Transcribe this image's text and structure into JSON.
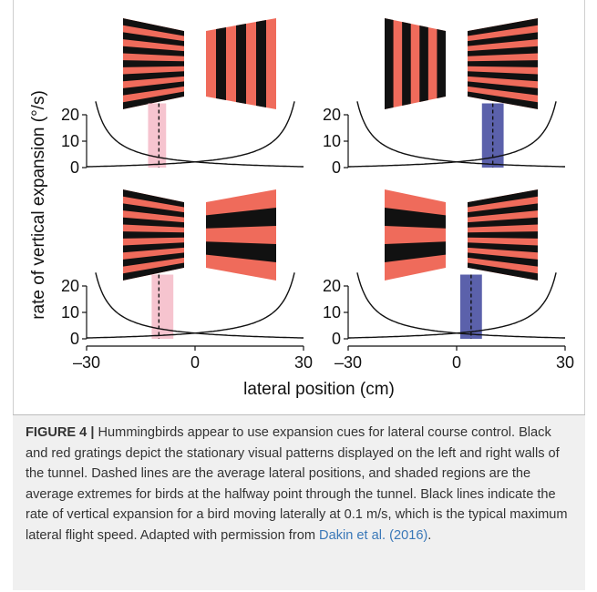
{
  "figure": {
    "ylabel": "rate of vertical expansion (°/s)",
    "xlabel": "lateral position (cm)",
    "colors": {
      "red": "#ef6b5b",
      "black": "#111111",
      "pink_band": "#f6c4cf",
      "blue_band": "#5b61ab",
      "curve": "#111111"
    }
  },
  "caption": {
    "label": "FIGURE 4 |",
    "text": " Hummingbirds appear to use expansion cues for lateral course control. Black and red gratings depict the stationary visual patterns displayed on the left and right walls of the tunnel. Dashed lines are the average lateral positions, and shaded regions are the average extremes for birds at the halfway point through the tunnel. Black lines indicate the rate of vertical expansion for a bird moving laterally at 0.1 m/s, which is the typical maximum lateral flight speed. Adapted with permission from ",
    "citation": "Dakin et al. (2016)",
    "end": "."
  },
  "chart_data": [
    {
      "type": "line",
      "panel": "top-left",
      "left_wall": "horizontal-fine",
      "right_wall": "vertical",
      "x_range": [
        -30,
        30
      ],
      "ylim": [
        0,
        25
      ],
      "yticks": [
        0,
        10,
        20
      ],
      "mean_position": -10,
      "band": [
        -13,
        -8
      ],
      "band_color": "pink"
    },
    {
      "type": "line",
      "panel": "top-right",
      "left_wall": "vertical",
      "right_wall": "horizontal-fine",
      "x_range": [
        -30,
        30
      ],
      "ylim": [
        0,
        25
      ],
      "yticks": [
        0,
        10,
        20
      ],
      "mean_position": 10,
      "band": [
        7,
        13
      ],
      "band_color": "blue"
    },
    {
      "type": "line",
      "panel": "bottom-left",
      "left_wall": "horizontal-fine",
      "right_wall": "horizontal-coarse",
      "x_range": [
        -30,
        30
      ],
      "ylim": [
        0,
        25
      ],
      "yticks": [
        0,
        10,
        20
      ],
      "xticks": [
        -30,
        0,
        30
      ],
      "xtick_labels": [
        "–30",
        "0",
        "30"
      ],
      "mean_position": -10,
      "band": [
        -12,
        -6
      ],
      "band_color": "pink"
    },
    {
      "type": "line",
      "panel": "bottom-right",
      "left_wall": "horizontal-coarse",
      "right_wall": "horizontal-fine",
      "x_range": [
        -30,
        30
      ],
      "ylim": [
        0,
        25
      ],
      "yticks": [
        0,
        10,
        20
      ],
      "xticks": [
        -30,
        0,
        30
      ],
      "xtick_labels": [
        "–30",
        "0",
        "30"
      ],
      "mean_position": 4,
      "band": [
        1,
        7
      ],
      "band_color": "blue"
    }
  ]
}
